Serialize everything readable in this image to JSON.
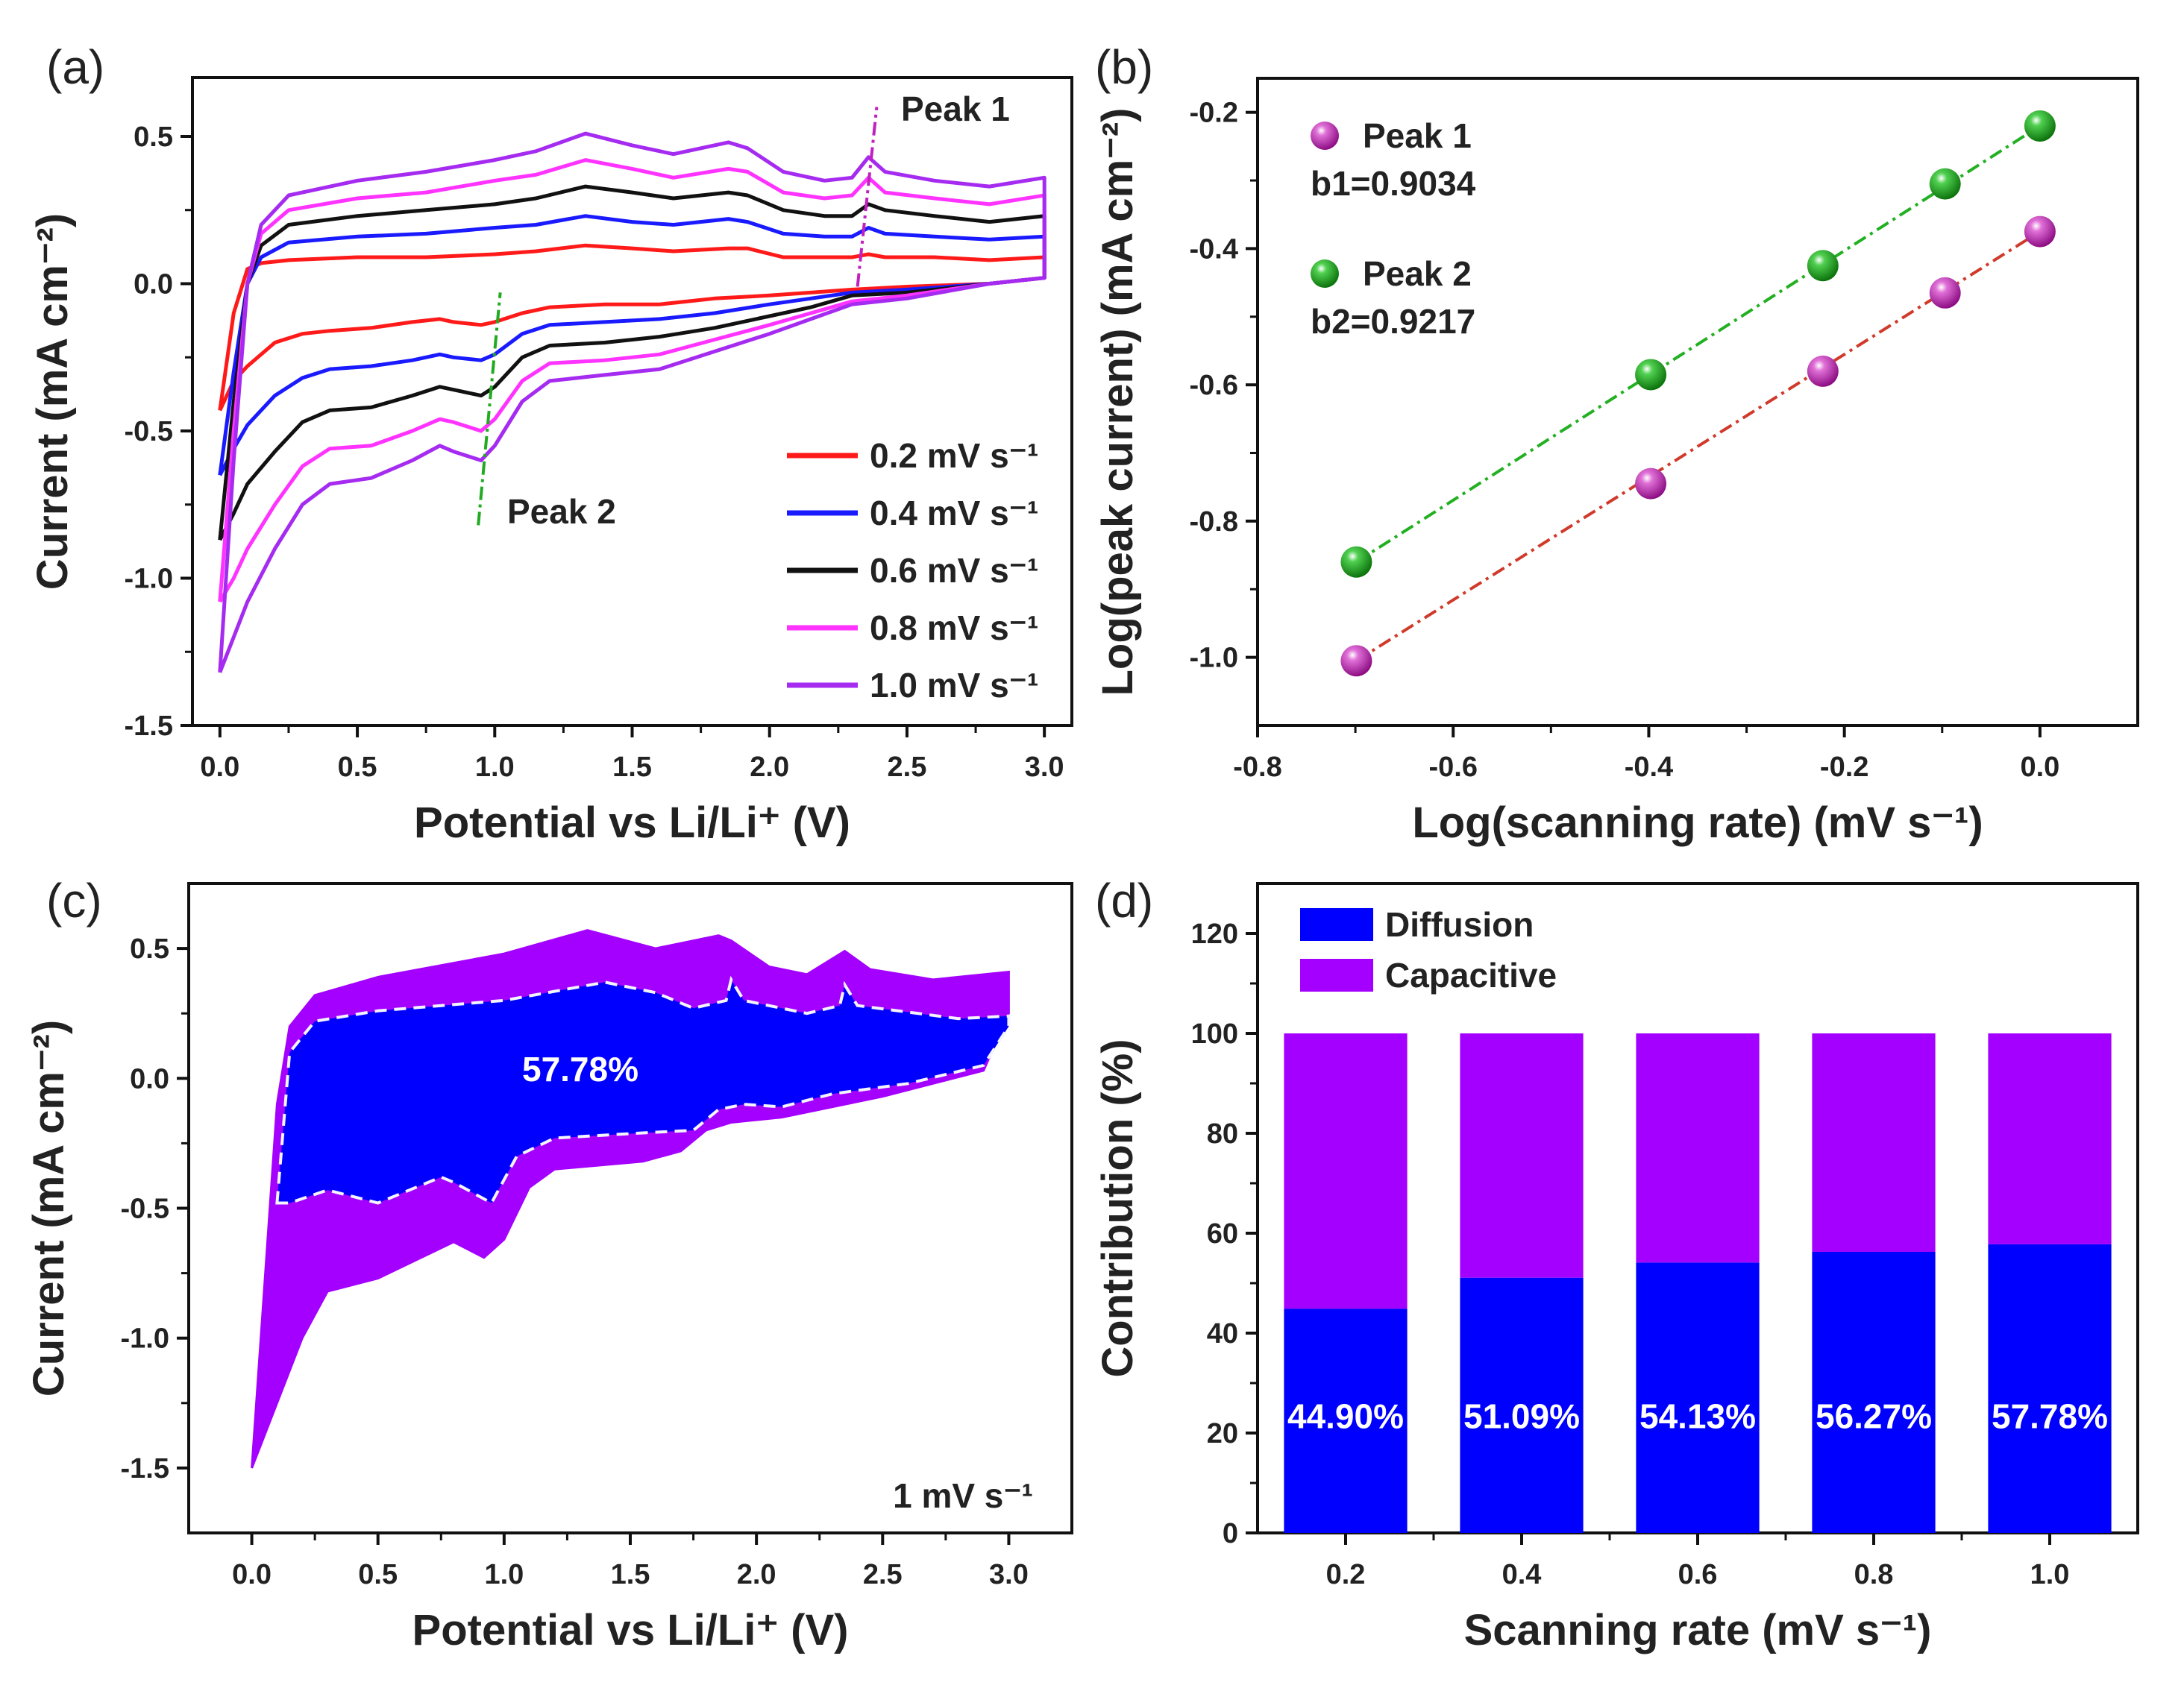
{
  "panel_labels": [
    "(a)",
    "(b)",
    "(c)",
    "(d)"
  ],
  "chart_data": [
    {
      "type": "line",
      "xlabel": "Potential vs Li/Li⁺ (V)",
      "ylabel": "Current (mA cm⁻²)",
      "xlim": [
        -0.1,
        3.1
      ],
      "ylim": [
        -1.5,
        0.7
      ],
      "xticks": [
        0,
        0.5,
        1,
        1.5,
        2,
        2.5,
        3
      ],
      "xtick_labels": [
        "0.0",
        "0.5",
        "1.0",
        "1.5",
        "2.0",
        "2.5",
        "3.0"
      ],
      "yticks": [
        -1.5,
        -1,
        -0.5,
        0,
        0.5
      ],
      "ytick_labels": [
        "-1.5",
        "-1.0",
        "-0.5",
        "0.0",
        "0.5"
      ],
      "grid": false,
      "legend_position": "bottom-right",
      "x_anodic": [
        0,
        0.05,
        0.1,
        0.15,
        0.25,
        0.5,
        0.75,
        1.0,
        1.15,
        1.33,
        1.5,
        1.65,
        1.85,
        1.92,
        2.05,
        2.2,
        2.3,
        2.36,
        2.42,
        2.6,
        2.8,
        3.0
      ],
      "x_cathodic": [
        3.0,
        2.8,
        2.5,
        2.3,
        2.15,
        2.0,
        1.8,
        1.6,
        1.4,
        1.2,
        1.1,
        1.0,
        0.95,
        0.85,
        0.8,
        0.7,
        0.55,
        0.4,
        0.3,
        0.2,
        0.1,
        0.05,
        0.0
      ],
      "series": [
        {
          "name": "0.2 mV s⁻¹",
          "color": "#ff1a1a",
          "anodic": [
            -0.43,
            -0.1,
            0.05,
            0.07,
            0.08,
            0.09,
            0.09,
            0.1,
            0.11,
            0.13,
            0.12,
            0.11,
            0.12,
            0.12,
            0.09,
            0.09,
            0.09,
            0.1,
            0.09,
            0.09,
            0.08,
            0.09
          ],
          "cathodic": [
            0.02,
            0.0,
            -0.01,
            -0.02,
            -0.03,
            -0.04,
            -0.05,
            -0.07,
            -0.07,
            -0.08,
            -0.1,
            -0.13,
            -0.14,
            -0.13,
            -0.12,
            -0.13,
            -0.15,
            -0.16,
            -0.17,
            -0.2,
            -0.28,
            -0.33,
            -0.43
          ]
        },
        {
          "name": "0.4 mV s⁻¹",
          "color": "#1a1aff",
          "anodic": [
            -0.65,
            -0.3,
            0.0,
            0.09,
            0.14,
            0.16,
            0.17,
            0.19,
            0.2,
            0.23,
            0.21,
            0.2,
            0.22,
            0.21,
            0.17,
            0.16,
            0.16,
            0.19,
            0.17,
            0.16,
            0.15,
            0.16
          ],
          "cathodic": [
            0.02,
            0.0,
            -0.02,
            -0.03,
            -0.05,
            -0.07,
            -0.1,
            -0.12,
            -0.13,
            -0.14,
            -0.17,
            -0.24,
            -0.26,
            -0.25,
            -0.24,
            -0.26,
            -0.28,
            -0.29,
            -0.32,
            -0.38,
            -0.48,
            -0.56,
            -0.65
          ]
        },
        {
          "name": "0.6 mV s⁻¹",
          "color": "#111111",
          "anodic": [
            -0.87,
            -0.4,
            0.0,
            0.13,
            0.2,
            0.23,
            0.25,
            0.27,
            0.29,
            0.33,
            0.31,
            0.29,
            0.31,
            0.3,
            0.25,
            0.23,
            0.23,
            0.27,
            0.25,
            0.23,
            0.21,
            0.23
          ],
          "cathodic": [
            0.02,
            0.0,
            -0.03,
            -0.04,
            -0.08,
            -0.11,
            -0.15,
            -0.18,
            -0.2,
            -0.21,
            -0.25,
            -0.35,
            -0.38,
            -0.36,
            -0.35,
            -0.38,
            -0.42,
            -0.43,
            -0.47,
            -0.57,
            -0.68,
            -0.78,
            -0.87
          ]
        },
        {
          "name": "0.8 mV s⁻¹",
          "color": "#ff33ff",
          "anodic": [
            -1.08,
            -0.5,
            0.0,
            0.17,
            0.25,
            0.29,
            0.31,
            0.35,
            0.37,
            0.42,
            0.39,
            0.36,
            0.39,
            0.38,
            0.31,
            0.29,
            0.3,
            0.36,
            0.31,
            0.29,
            0.27,
            0.3
          ],
          "cathodic": [
            0.02,
            0.0,
            -0.04,
            -0.06,
            -0.1,
            -0.14,
            -0.19,
            -0.24,
            -0.26,
            -0.27,
            -0.33,
            -0.46,
            -0.5,
            -0.47,
            -0.46,
            -0.5,
            -0.55,
            -0.56,
            -0.62,
            -0.75,
            -0.9,
            -1.0,
            -1.08
          ]
        },
        {
          "name": "1.0 mV s⁻¹",
          "color": "#a52bf0",
          "anodic": [
            -1.32,
            -0.6,
            0.0,
            0.2,
            0.3,
            0.35,
            0.38,
            0.42,
            0.45,
            0.51,
            0.47,
            0.44,
            0.48,
            0.46,
            0.38,
            0.35,
            0.36,
            0.43,
            0.38,
            0.35,
            0.33,
            0.36
          ],
          "cathodic": [
            0.02,
            0.0,
            -0.05,
            -0.07,
            -0.12,
            -0.17,
            -0.23,
            -0.29,
            -0.31,
            -0.33,
            -0.4,
            -0.55,
            -0.6,
            -0.57,
            -0.55,
            -0.6,
            -0.66,
            -0.68,
            -0.75,
            -0.9,
            -1.08,
            -1.2,
            -1.32
          ]
        }
      ],
      "annotations": [
        {
          "text": "Peak 1",
          "color": "#c020c0",
          "guide": [
            [
              2.32,
              -0.01
            ],
            [
              2.39,
              0.6
            ]
          ]
        },
        {
          "text": "Peak 2",
          "color": "#22aa22",
          "guide": [
            [
              0.94,
              -0.82
            ],
            [
              1.02,
              -0.03
            ]
          ]
        }
      ]
    },
    {
      "type": "scatter",
      "xlabel": "Log(scanning rate) (mV s⁻¹)",
      "ylabel": "Log(peak current) (mA cm⁻²)",
      "xlim": [
        -0.8,
        0.1
      ],
      "ylim": [
        -1.1,
        -0.15
      ],
      "xticks": [
        -0.8,
        -0.6,
        -0.4,
        -0.2,
        0.0
      ],
      "xtick_labels": [
        "-0.8",
        "-0.6",
        "-0.4",
        "-0.2",
        "0.0"
      ],
      "yticks": [
        -1.0,
        -0.8,
        -0.6,
        -0.4,
        -0.2
      ],
      "ytick_labels": [
        "-1.0",
        "-0.8",
        "-0.6",
        "-0.4",
        "-0.2"
      ],
      "grid": false,
      "legend_position": "top-left",
      "series": [
        {
          "name": "Peak 1",
          "color": "#b0109f",
          "fit_color": "#d03a2a",
          "fit_label": "b1=0.9034",
          "x": [
            -0.699,
            -0.398,
            -0.222,
            -0.097,
            0.0
          ],
          "y": [
            -1.005,
            -0.745,
            -0.58,
            -0.465,
            -0.375
          ]
        },
        {
          "name": "Peak 2",
          "color": "#1a9a1a",
          "fit_color": "#22b022",
          "fit_label": "b2=0.9217",
          "x": [
            -0.699,
            -0.398,
            -0.222,
            -0.097,
            0.0
          ],
          "y": [
            -0.86,
            -0.585,
            -0.425,
            -0.305,
            -0.22
          ]
        }
      ]
    },
    {
      "type": "area",
      "xlabel": "Potential vs Li/Li⁺ (V)",
      "ylabel": "Current (mA cm⁻²)",
      "xlim": [
        -0.25,
        3.25
      ],
      "ylim": [
        -1.75,
        0.75
      ],
      "xticks": [
        0,
        0.5,
        1,
        1.5,
        2,
        2.5,
        3
      ],
      "xtick_labels": [
        "0.0",
        "0.5",
        "1.0",
        "1.5",
        "2.0",
        "2.5",
        "3.0"
      ],
      "yticks": [
        -1.5,
        -1,
        -0.5,
        0,
        0.5
      ],
      "ytick_labels": [
        "-1.5",
        "-1.0",
        "-0.5",
        "0.0",
        "0.5"
      ],
      "grid": false,
      "rate_label": "1 mV s⁻¹",
      "inner_label": "57.78%",
      "total": {
        "color": "#a400ff",
        "points": [
          [
            0,
            -1.5
          ],
          [
            0.05,
            -0.8
          ],
          [
            0.1,
            -0.1
          ],
          [
            0.15,
            0.2
          ],
          [
            0.25,
            0.32
          ],
          [
            0.5,
            0.39
          ],
          [
            1.0,
            0.48
          ],
          [
            1.33,
            0.57
          ],
          [
            1.6,
            0.5
          ],
          [
            1.85,
            0.55
          ],
          [
            1.9,
            0.53
          ],
          [
            2.05,
            0.43
          ],
          [
            2.2,
            0.4
          ],
          [
            2.35,
            0.49
          ],
          [
            2.45,
            0.42
          ],
          [
            2.7,
            0.38
          ],
          [
            3.0,
            0.41
          ],
          [
            3.0,
            0.25
          ],
          [
            2.9,
            0.03
          ],
          [
            2.5,
            -0.07
          ],
          [
            2.1,
            -0.15
          ],
          [
            1.9,
            -0.17
          ],
          [
            1.8,
            -0.2
          ],
          [
            1.7,
            -0.28
          ],
          [
            1.55,
            -0.32
          ],
          [
            1.2,
            -0.35
          ],
          [
            1.1,
            -0.42
          ],
          [
            1.0,
            -0.62
          ],
          [
            0.92,
            -0.69
          ],
          [
            0.8,
            -0.63
          ],
          [
            0.5,
            -0.77
          ],
          [
            0.3,
            -0.82
          ],
          [
            0.2,
            -1.0
          ],
          [
            0.1,
            -1.25
          ],
          [
            0.0,
            -1.5
          ]
        ]
      },
      "inner": {
        "color": "#0000ff",
        "points": [
          [
            0.1,
            -0.48
          ],
          [
            0.15,
            0.1
          ],
          [
            0.25,
            0.22
          ],
          [
            0.5,
            0.26
          ],
          [
            1.0,
            0.3
          ],
          [
            1.4,
            0.37
          ],
          [
            1.6,
            0.33
          ],
          [
            1.75,
            0.27
          ],
          [
            1.88,
            0.3
          ],
          [
            1.9,
            0.38
          ],
          [
            1.95,
            0.3
          ],
          [
            2.2,
            0.25
          ],
          [
            2.33,
            0.28
          ],
          [
            2.35,
            0.36
          ],
          [
            2.4,
            0.28
          ],
          [
            2.8,
            0.23
          ],
          [
            3.0,
            0.24
          ],
          [
            3.0,
            0.2
          ],
          [
            2.9,
            0.05
          ],
          [
            2.6,
            -0.02
          ],
          [
            2.3,
            -0.06
          ],
          [
            2.1,
            -0.11
          ],
          [
            1.95,
            -0.1
          ],
          [
            1.85,
            -0.12
          ],
          [
            1.75,
            -0.2
          ],
          [
            1.55,
            -0.21
          ],
          [
            1.2,
            -0.23
          ],
          [
            1.05,
            -0.3
          ],
          [
            0.95,
            -0.48
          ],
          [
            0.8,
            -0.4
          ],
          [
            0.75,
            -0.38
          ],
          [
            0.5,
            -0.48
          ],
          [
            0.3,
            -0.43
          ],
          [
            0.15,
            -0.48
          ],
          [
            0.1,
            -0.48
          ]
        ]
      }
    },
    {
      "type": "bar",
      "stacked": true,
      "xlabel": "Scanning rate (mV s⁻¹)",
      "ylabel": "Contribution (%)",
      "xlim": [
        0.1,
        1.1
      ],
      "ylim": [
        0,
        130
      ],
      "xticks": [
        0.2,
        0.4,
        0.6,
        0.8,
        1.0
      ],
      "xtick_labels": [
        "0.2",
        "0.4",
        "0.6",
        "0.8",
        "1.0"
      ],
      "yticks": [
        0,
        20,
        40,
        60,
        80,
        100,
        120
      ],
      "ytick_labels": [
        "0",
        "20",
        "40",
        "60",
        "80",
        "100",
        "120"
      ],
      "grid": false,
      "legend_position": "top-left",
      "categories": [
        0.2,
        0.4,
        0.6,
        0.8,
        1.0
      ],
      "series": [
        {
          "name": "Diffusion",
          "color": "#0000ff",
          "values": [
            44.9,
            51.09,
            54.13,
            56.27,
            57.78
          ],
          "data_labels": [
            "44.90%",
            "51.09%",
            "54.13%",
            "56.27%",
            "57.78%"
          ]
        },
        {
          "name": "Capacitive",
          "color": "#a400ff",
          "values": [
            55.1,
            48.91,
            45.87,
            43.73,
            42.22
          ]
        }
      ]
    }
  ]
}
